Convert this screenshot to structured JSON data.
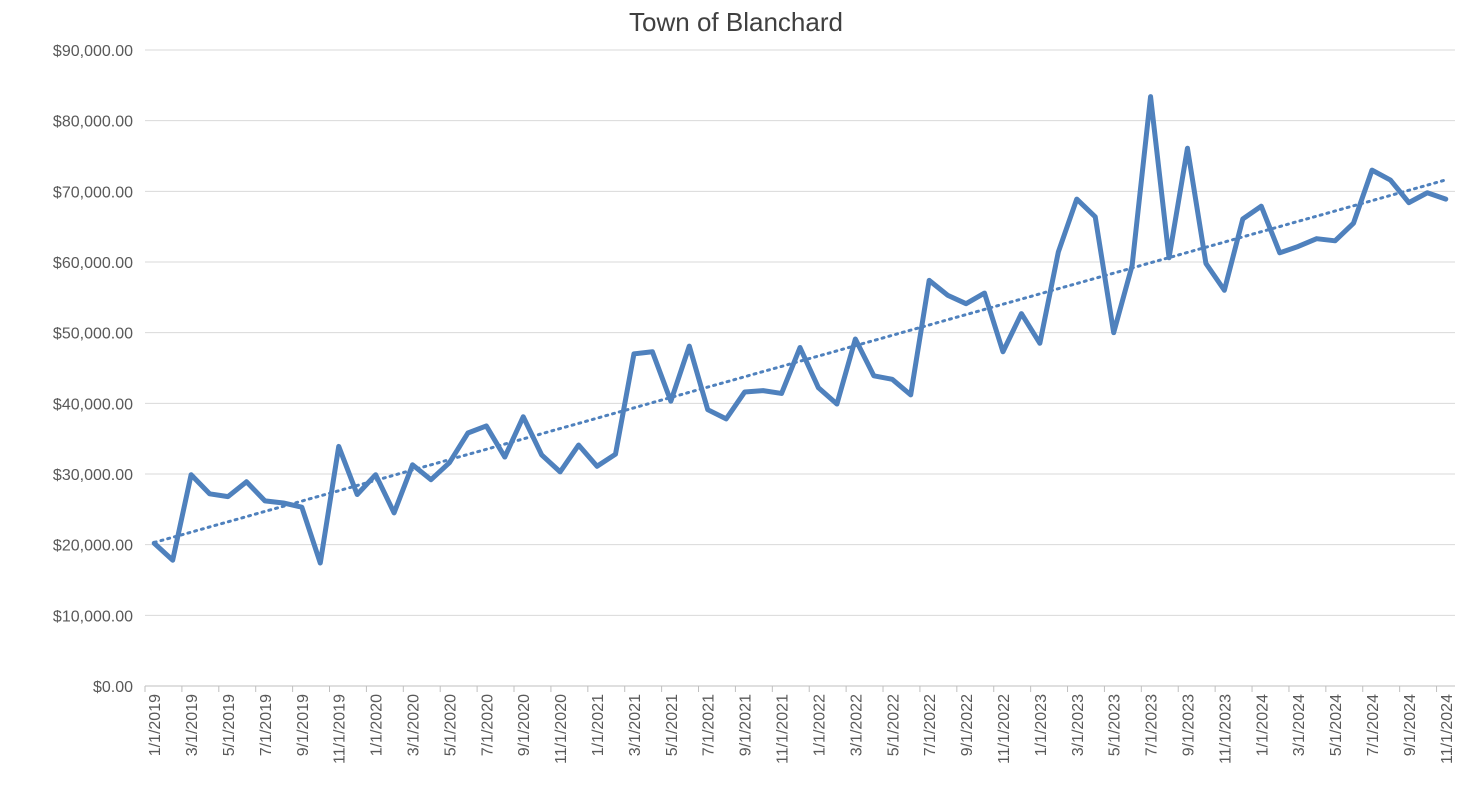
{
  "chart_data": {
    "type": "line",
    "title": "Town of Blanchard",
    "categories": [
      "1/1/2019",
      null,
      "3/1/2019",
      null,
      "5/1/2019",
      null,
      "7/1/2019",
      null,
      "9/1/2019",
      null,
      "11/1/2019",
      null,
      "1/1/2020",
      null,
      "3/1/2020",
      null,
      "5/1/2020",
      null,
      "7/1/2020",
      null,
      "9/1/2020",
      null,
      "11/1/2020",
      null,
      "1/1/2021",
      null,
      "3/1/2021",
      null,
      "5/1/2021",
      null,
      "7/1/2021",
      null,
      "9/1/2021",
      null,
      "11/1/2021",
      null,
      "1/1/2022",
      null,
      "3/1/2022",
      null,
      "5/1/2022",
      null,
      "7/1/2022",
      null,
      "9/1/2022",
      null,
      "11/1/2022",
      null,
      "1/1/2023",
      null,
      "3/1/2023",
      null,
      "5/1/2023",
      null,
      "7/1/2023",
      null,
      "9/1/2023",
      null,
      "11/1/2023",
      null,
      "1/1/2024",
      null,
      "3/1/2024",
      null,
      "5/1/2024",
      null,
      "7/1/2024",
      null,
      "9/1/2024",
      null,
      "11/1/2024"
    ],
    "series": [
      {
        "color": "#4f81bd",
        "values": [
          20200,
          17800,
          29900,
          27200,
          26800,
          28900,
          26200,
          25900,
          25300,
          17400,
          33900,
          27100,
          29900,
          24500,
          31300,
          29200,
          31600,
          35800,
          36800,
          32400,
          38100,
          32700,
          30300,
          34100,
          31100,
          32800,
          47000,
          47300,
          40300,
          48100,
          39100,
          37800,
          41600,
          41800,
          41400,
          47900,
          42200,
          39900,
          49100,
          43900,
          43400,
          41200,
          57400,
          55300,
          54100,
          55600,
          47300,
          52700,
          48500,
          61400,
          68900,
          66400,
          50000,
          59500,
          83400,
          60600,
          76100,
          59800,
          56000,
          66100,
          67900,
          61300,
          62200,
          63300,
          63000,
          65500,
          73000,
          71600,
          68400,
          69800,
          68900
        ]
      }
    ],
    "trendline": "linear",
    "ylim": [
      0,
      90000
    ],
    "yticks": [
      {
        "value": 0,
        "label": "$0.00"
      },
      {
        "value": 10000,
        "label": "$10,000.00"
      },
      {
        "value": 20000,
        "label": "$20,000.00"
      },
      {
        "value": 30000,
        "label": "$30,000.00"
      },
      {
        "value": 40000,
        "label": "$40,000.00"
      },
      {
        "value": 50000,
        "label": "$50,000.00"
      },
      {
        "value": 60000,
        "label": "$60,000.00"
      },
      {
        "value": 70000,
        "label": "$70,000.00"
      },
      {
        "value": 80000,
        "label": "$80,000.00"
      },
      {
        "value": 90000,
        "label": "$90,000.00"
      }
    ],
    "grid": true
  }
}
